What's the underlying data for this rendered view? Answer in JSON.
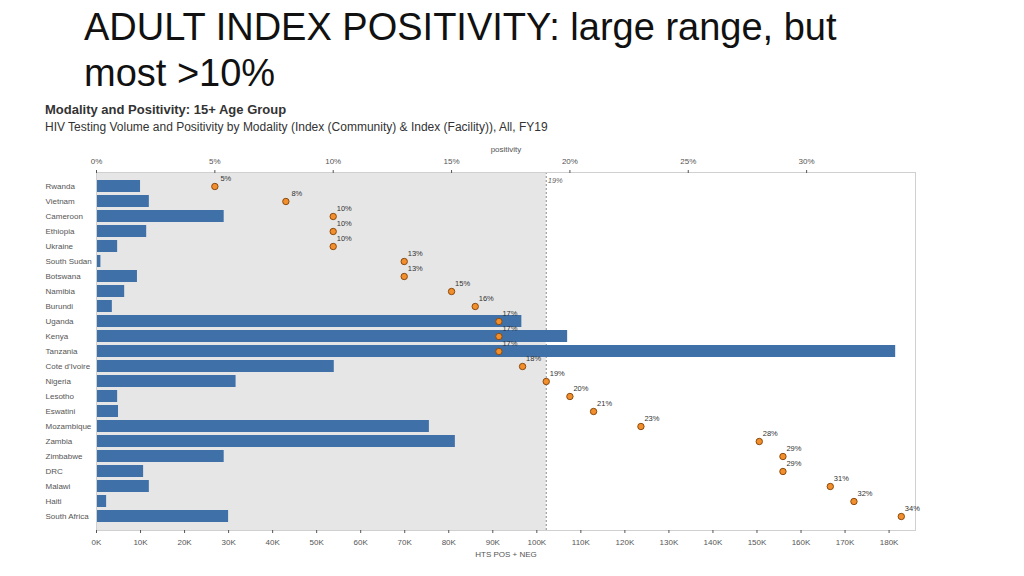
{
  "chart_data": {
    "type": "bar",
    "orientation": "horizontal",
    "title": "ADULT INDEX POSITIVITY: large range, but most >10%",
    "subtitles": [
      "Modality and Positivity: 15+ Age Group",
      "HIV Testing Volume and Positivity by Modality (Index (Community) & Index (Facility)), All, FY19"
    ],
    "categories": [
      "Rwanda",
      "Vietnam",
      "Cameroon",
      "Ethiopia",
      "Ukraine",
      "South Sudan",
      "Botswana",
      "Namibia",
      "Burundi",
      "Uganda",
      "Kenya",
      "Tanzania",
      "Cote d'Ivoire",
      "Nigeria",
      "Lesotho",
      "Eswatini",
      "Mozambique",
      "Zambia",
      "Zimbabwe",
      "DRC",
      "Malawi",
      "Haiti",
      "South Africa"
    ],
    "series": [
      {
        "type": "bar",
        "color": "#3f71a8",
        "values": [
          10000,
          12000,
          29000,
          11400,
          4800,
          1000,
          9300,
          6400,
          3600,
          96600,
          107000,
          181500,
          54000,
          31700,
          4800,
          5000,
          75600,
          81500,
          29000,
          10700,
          12000,
          2300,
          30000
        ]
      },
      {
        "type": "scatter",
        "axis": "x2",
        "marker": "circle",
        "color": "#f28e2b",
        "data_labels": true,
        "values": [
          5,
          8,
          10,
          10,
          10,
          13,
          13,
          15,
          16,
          17,
          17,
          17,
          18,
          19,
          20,
          21,
          23,
          28,
          29,
          29,
          31,
          32,
          34
        ],
        "value_labels": [
          "5%",
          "8%",
          "10%",
          "10%",
          "10%",
          "13%",
          "13%",
          "15%",
          "16%",
          "17%",
          "17%",
          "17%",
          "18%",
          "19%",
          "20%",
          "21%",
          "23%",
          "28%",
          "29%",
          "29%",
          "31%",
          "32%",
          "34%"
        ]
      }
    ],
    "xlabel": "HTS POS + NEG",
    "xlim": [
      0,
      186000
    ],
    "xticks": [
      {
        "value": 0,
        "label": "0K"
      },
      {
        "value": 10000,
        "label": "10K"
      },
      {
        "value": 20000,
        "label": "20K"
      },
      {
        "value": 30000,
        "label": "30K"
      },
      {
        "value": 40000,
        "label": "40K"
      },
      {
        "value": 50000,
        "label": "50K"
      },
      {
        "value": 60000,
        "label": "60K"
      },
      {
        "value": 70000,
        "label": "70K"
      },
      {
        "value": 80000,
        "label": "80K"
      },
      {
        "value": 90000,
        "label": "90K"
      },
      {
        "value": 100000,
        "label": "100K"
      },
      {
        "value": 110000,
        "label": "110K"
      },
      {
        "value": 120000,
        "label": "120K"
      },
      {
        "value": 130000,
        "label": "130K"
      },
      {
        "value": 140000,
        "label": "140K"
      },
      {
        "value": 150000,
        "label": "150K"
      },
      {
        "value": 160000,
        "label": "160K"
      },
      {
        "value": 170000,
        "label": "170K"
      },
      {
        "value": 180000,
        "label": "180K"
      }
    ],
    "x2label": "positivity",
    "x2lim": [
      0,
      34.6
    ],
    "x2ticks": [
      {
        "value": 0,
        "label": "0%"
      },
      {
        "value": 5,
        "label": "5%"
      },
      {
        "value": 10,
        "label": "10%"
      },
      {
        "value": 15,
        "label": "15%"
      },
      {
        "value": 20,
        "label": "20%"
      },
      {
        "value": 25,
        "label": "25%"
      },
      {
        "value": 30,
        "label": "30%"
      }
    ],
    "reference_line": {
      "value": 19,
      "label": "19%"
    },
    "grid": false
  }
}
